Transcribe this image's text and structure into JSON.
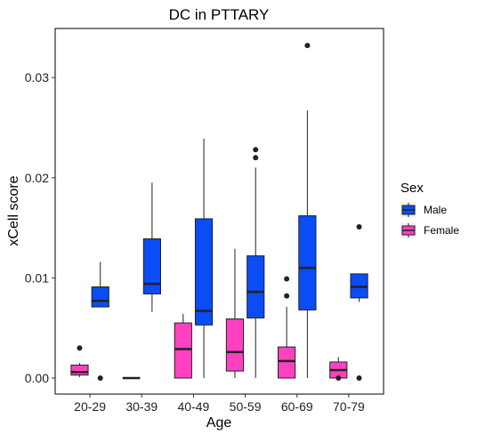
{
  "chart_data": {
    "type": "boxplot",
    "title": "DC in PTTARY",
    "xlabel": "Age",
    "ylabel": "xCell score",
    "categories": [
      "20-29",
      "30-39",
      "40-49",
      "50-59",
      "60-69",
      "70-79"
    ],
    "ylim": [
      -0.0016,
      0.0349
    ],
    "yticks": [
      0.0,
      0.01,
      0.02,
      0.03
    ],
    "ytick_labels": [
      "0.00",
      "0.01",
      "0.02",
      "0.03"
    ],
    "grid": false,
    "legend": {
      "title": "Sex",
      "position": "right",
      "entries": [
        {
          "label": "Male",
          "color": "#0a4cf6"
        },
        {
          "label": "Female",
          "color": "#ff40c0"
        }
      ]
    },
    "series": [
      {
        "name": "Male",
        "color": "#0a4cf6",
        "boxes": [
          {
            "category": "20-29",
            "min": 0.0071,
            "q1": 0.0071,
            "median": 0.0077,
            "q3": 0.0091,
            "max": 0.0116,
            "outliers": [
              0.0
            ]
          },
          {
            "category": "30-39",
            "min": 0.0066,
            "q1": 0.0084,
            "median": 0.0094,
            "q3": 0.0139,
            "max": 0.0195,
            "outliers": []
          },
          {
            "category": "40-49",
            "min": 0.0,
            "q1": 0.0053,
            "median": 0.0067,
            "q3": 0.0159,
            "max": 0.0239,
            "outliers": []
          },
          {
            "category": "50-59",
            "min": 0.0,
            "q1": 0.006,
            "median": 0.0086,
            "q3": 0.0122,
            "max": 0.021,
            "outliers": [
              0.022,
              0.0228
            ]
          },
          {
            "category": "60-69",
            "min": 0.0,
            "q1": 0.0068,
            "median": 0.011,
            "q3": 0.0162,
            "max": 0.0267,
            "outliers": [
              0.0332
            ]
          },
          {
            "category": "70-79",
            "min": 0.0076,
            "q1": 0.008,
            "median": 0.0091,
            "q3": 0.0104,
            "max": 0.0104,
            "outliers": [
              0.0151,
              0.0
            ]
          }
        ]
      },
      {
        "name": "Female",
        "color": "#ff40c0",
        "boxes": [
          {
            "category": "20-29",
            "min": 0.0001,
            "q1": 0.0003,
            "median": 0.0006,
            "q3": 0.0013,
            "max": 0.0015,
            "outliers": [
              0.003
            ]
          },
          {
            "category": "30-39",
            "min": 0.0,
            "q1": 0.0,
            "median": 0.0,
            "q3": 0.0,
            "max": 0.0,
            "outliers": []
          },
          {
            "category": "40-49",
            "min": 0.0,
            "q1": 0.0,
            "median": 0.0029,
            "q3": 0.0055,
            "max": 0.0064,
            "outliers": []
          },
          {
            "category": "50-59",
            "min": 0.0,
            "q1": 0.0007,
            "median": 0.0026,
            "q3": 0.0059,
            "max": 0.0129,
            "outliers": []
          },
          {
            "category": "60-69",
            "min": 0.0,
            "q1": 0.0,
            "median": 0.0017,
            "q3": 0.0031,
            "max": 0.0071,
            "outliers": [
              0.0082,
              0.0099
            ]
          },
          {
            "category": "70-79",
            "min": 0.0,
            "q1": 0.0,
            "median": 0.0008,
            "q3": 0.0016,
            "max": 0.0021,
            "outliers": [
              0.0
            ]
          }
        ]
      }
    ]
  }
}
